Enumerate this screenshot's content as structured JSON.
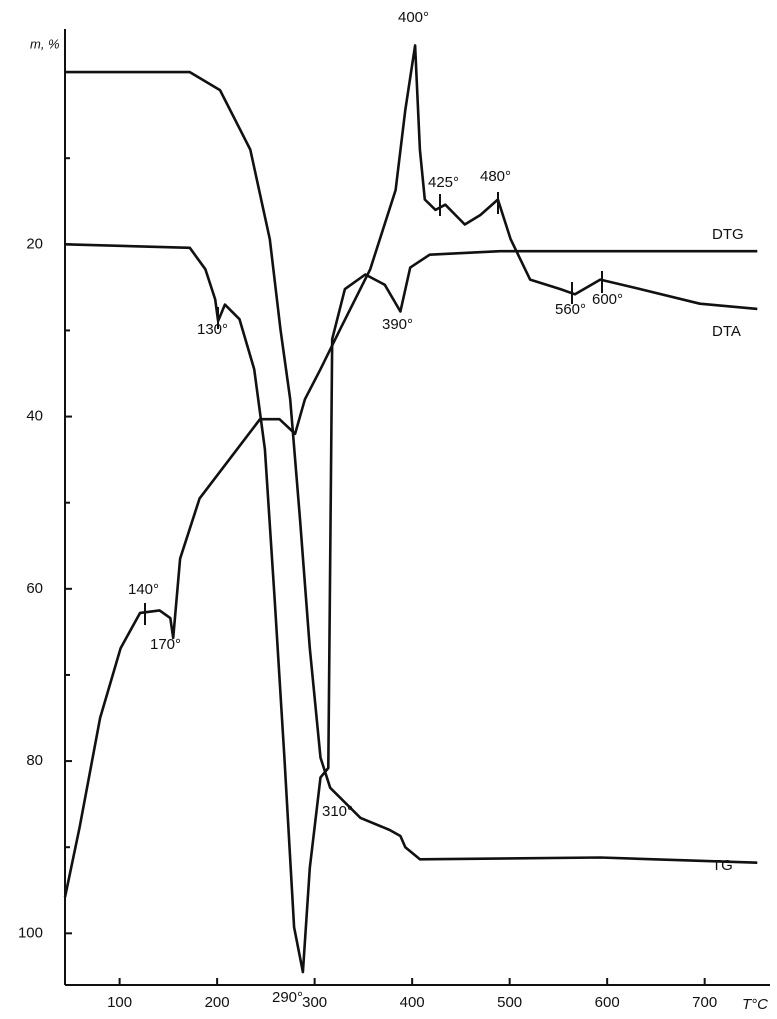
{
  "chart_data": {
    "type": "line",
    "ylabel": "m, %",
    "xlabel": "T°C",
    "xlim": [
      44,
      767
    ],
    "ylim": [
      -5,
      106
    ],
    "y_inverted": true,
    "xticks": [
      100,
      200,
      300,
      400,
      500,
      600,
      700
    ],
    "yticks": [
      20,
      40,
      60,
      80,
      100
    ],
    "y_minor_ticks": [
      10,
      30,
      50,
      70,
      90
    ],
    "color": "#111111",
    "series": [
      {
        "name": "TG",
        "color": "#111111",
        "x": [
          44,
          59,
          172,
          203,
          234,
          254,
          265,
          275,
          285,
          295,
          306,
          316,
          347,
          377,
          388,
          393,
          408,
          593,
          754
        ],
        "values": [
          0,
          0,
          0,
          2.1,
          9,
          19.4,
          29.9,
          38,
          51.9,
          66.9,
          79.6,
          83.1,
          86.6,
          88,
          88.7,
          90,
          91.4,
          91.2,
          91.8
        ]
      },
      {
        "name": "DTG",
        "color": "#111111",
        "x": [
          44,
          172,
          188,
          198,
          201,
          208,
          223,
          238,
          249,
          259,
          269,
          279,
          288,
          295,
          306,
          314,
          318,
          331,
          352,
          372,
          388,
          398,
          418,
          490,
          754
        ],
        "values": [
          20,
          20.4,
          22.9,
          26.4,
          28.9,
          27,
          28.7,
          34.5,
          43.8,
          61.1,
          79.6,
          99.3,
          104.5,
          92.4,
          81.9,
          80.8,
          31,
          25.2,
          23.5,
          24.7,
          27.8,
          22.7,
          21.2,
          20.8,
          20.8
        ]
      },
      {
        "name": "DTA",
        "color": "#111111",
        "x": [
          44,
          59,
          80,
          101,
          121,
          141,
          152,
          155,
          162,
          182,
          213,
          244,
          264,
          280,
          290,
          306,
          326,
          357,
          383,
          393,
          403,
          408,
          413,
          424,
          434,
          454,
          470,
          488,
          501,
          521,
          552,
          567,
          593,
          634,
          695,
          754
        ],
        "values": [
          95.8,
          87.7,
          75,
          66.9,
          62.8,
          62.5,
          63.4,
          65.7,
          56.5,
          49.5,
          44.9,
          40.3,
          40.3,
          42,
          38,
          34.5,
          29.9,
          22.9,
          13.7,
          4.4,
          -3.1,
          9,
          14.8,
          16,
          15.4,
          17.7,
          16.6,
          14.8,
          19.4,
          24.1,
          25.2,
          25.8,
          24.1,
          25.2,
          26.9,
          27.5
        ]
      }
    ],
    "annotations": [
      "400°",
      "425°",
      "480°",
      "390°",
      "130°",
      "560°",
      "600°",
      "140°",
      "170°",
      "290°",
      "310°"
    ]
  }
}
